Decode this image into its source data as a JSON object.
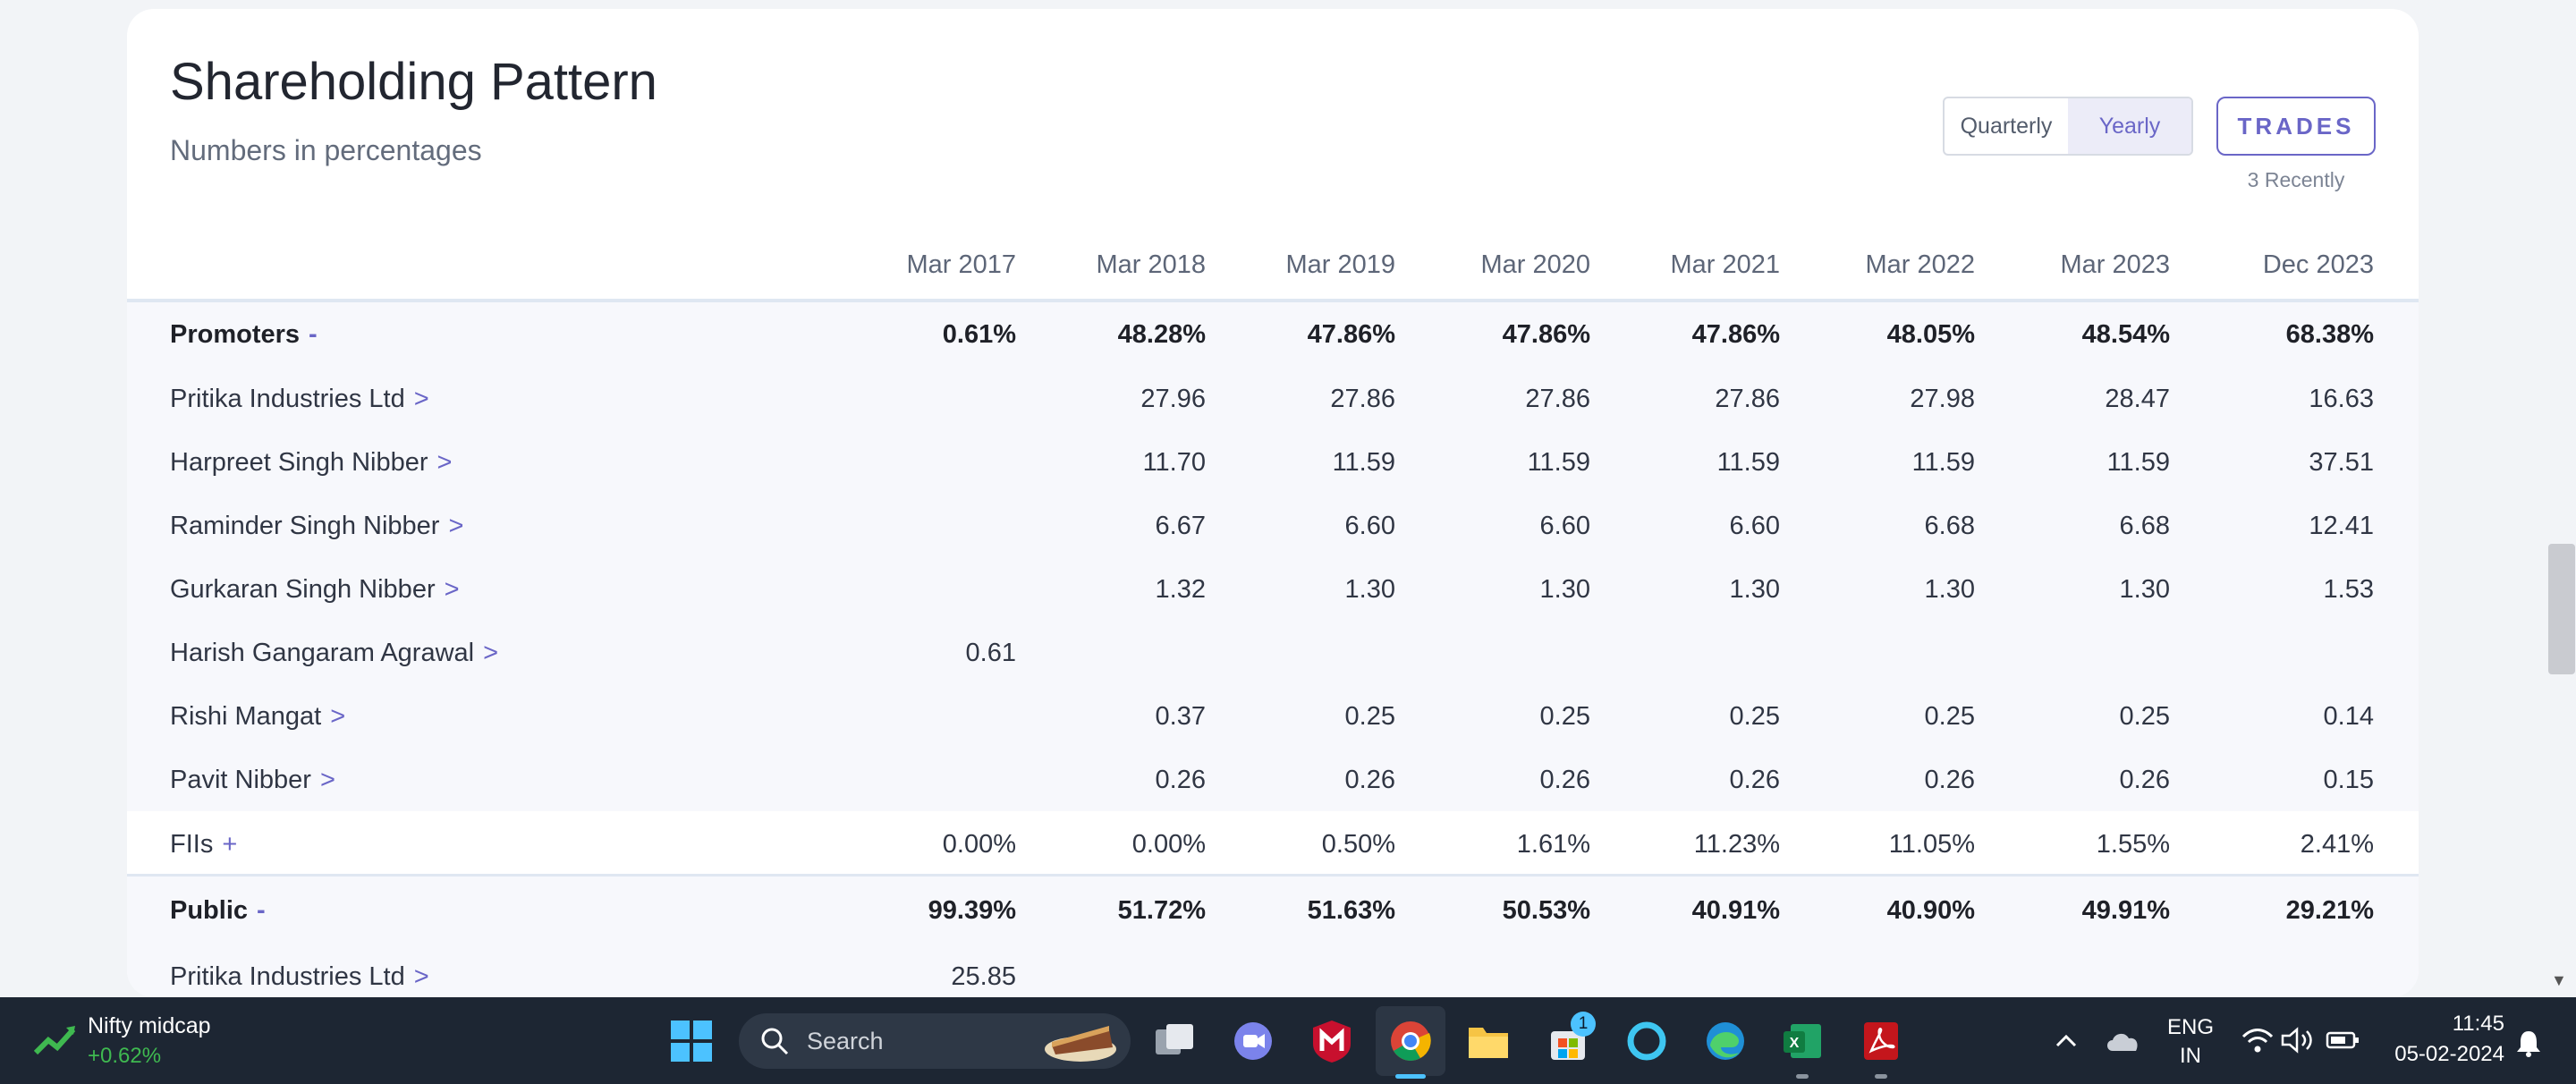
{
  "panel": {
    "title": "Shareholding Pattern",
    "subtitle": "Numbers in percentages",
    "toggle": {
      "quarterly": "Quarterly",
      "yearly": "Yearly",
      "active": "Yearly"
    },
    "trades_label": "TRADES",
    "trades_note": "3 Recently"
  },
  "table": {
    "columns": [
      "Mar 2017",
      "Mar 2018",
      "Mar 2019",
      "Mar 2020",
      "Mar 2021",
      "Mar 2022",
      "Mar 2023",
      "Dec 2023"
    ],
    "rows": [
      {
        "label": "Promoters",
        "sign": "-",
        "kind": "group",
        "values": [
          "0.61%",
          "48.28%",
          "47.86%",
          "47.86%",
          "47.86%",
          "48.05%",
          "48.54%",
          "68.38%"
        ]
      },
      {
        "label": "Pritika Industries Ltd",
        "sign": ">",
        "kind": "sub",
        "values": [
          "",
          "27.96",
          "27.86",
          "27.86",
          "27.86",
          "27.98",
          "28.47",
          "16.63"
        ]
      },
      {
        "label": "Harpreet Singh Nibber",
        "sign": ">",
        "kind": "sub",
        "values": [
          "",
          "11.70",
          "11.59",
          "11.59",
          "11.59",
          "11.59",
          "11.59",
          "37.51"
        ]
      },
      {
        "label": "Raminder Singh Nibber",
        "sign": ">",
        "kind": "sub",
        "values": [
          "",
          "6.67",
          "6.60",
          "6.60",
          "6.60",
          "6.68",
          "6.68",
          "12.41"
        ]
      },
      {
        "label": "Gurkaran Singh Nibber",
        "sign": ">",
        "kind": "sub",
        "values": [
          "",
          "1.32",
          "1.30",
          "1.30",
          "1.30",
          "1.30",
          "1.30",
          "1.53"
        ]
      },
      {
        "label": "Harish Gangaram Agrawal",
        "sign": ">",
        "kind": "sub",
        "values": [
          "0.61",
          "",
          "",
          "",
          "",
          "",
          "",
          ""
        ]
      },
      {
        "label": "Rishi Mangat",
        "sign": ">",
        "kind": "sub",
        "values": [
          "",
          "0.37",
          "0.25",
          "0.25",
          "0.25",
          "0.25",
          "0.25",
          "0.14"
        ]
      },
      {
        "label": "Pavit Nibber",
        "sign": ">",
        "kind": "sub",
        "values": [
          "",
          "0.26",
          "0.26",
          "0.26",
          "0.26",
          "0.26",
          "0.26",
          "0.15"
        ]
      },
      {
        "label": "FIIs",
        "sign": "+",
        "kind": "plain",
        "values": [
          "0.00%",
          "0.00%",
          "0.50%",
          "1.61%",
          "11.23%",
          "11.05%",
          "1.55%",
          "2.41%"
        ]
      },
      {
        "label": "Public",
        "sign": "-",
        "kind": "group",
        "values": [
          "99.39%",
          "51.72%",
          "51.63%",
          "50.53%",
          "40.91%",
          "40.90%",
          "49.91%",
          "29.21%"
        ]
      },
      {
        "label": "Pritika Industries Ltd",
        "sign": ">",
        "kind": "sub",
        "values": [
          "25.85",
          "",
          "",
          "",
          "",
          "",
          "",
          ""
        ]
      }
    ]
  },
  "taskbar": {
    "widget_name": "Nifty midcap",
    "widget_change": "+0.62%",
    "search_label": "Search",
    "store_badge": "1",
    "lang_top": "ENG",
    "lang_bottom": "IN",
    "time": "11:45",
    "date": "05-02-2024",
    "accent": "#6a66c7"
  }
}
